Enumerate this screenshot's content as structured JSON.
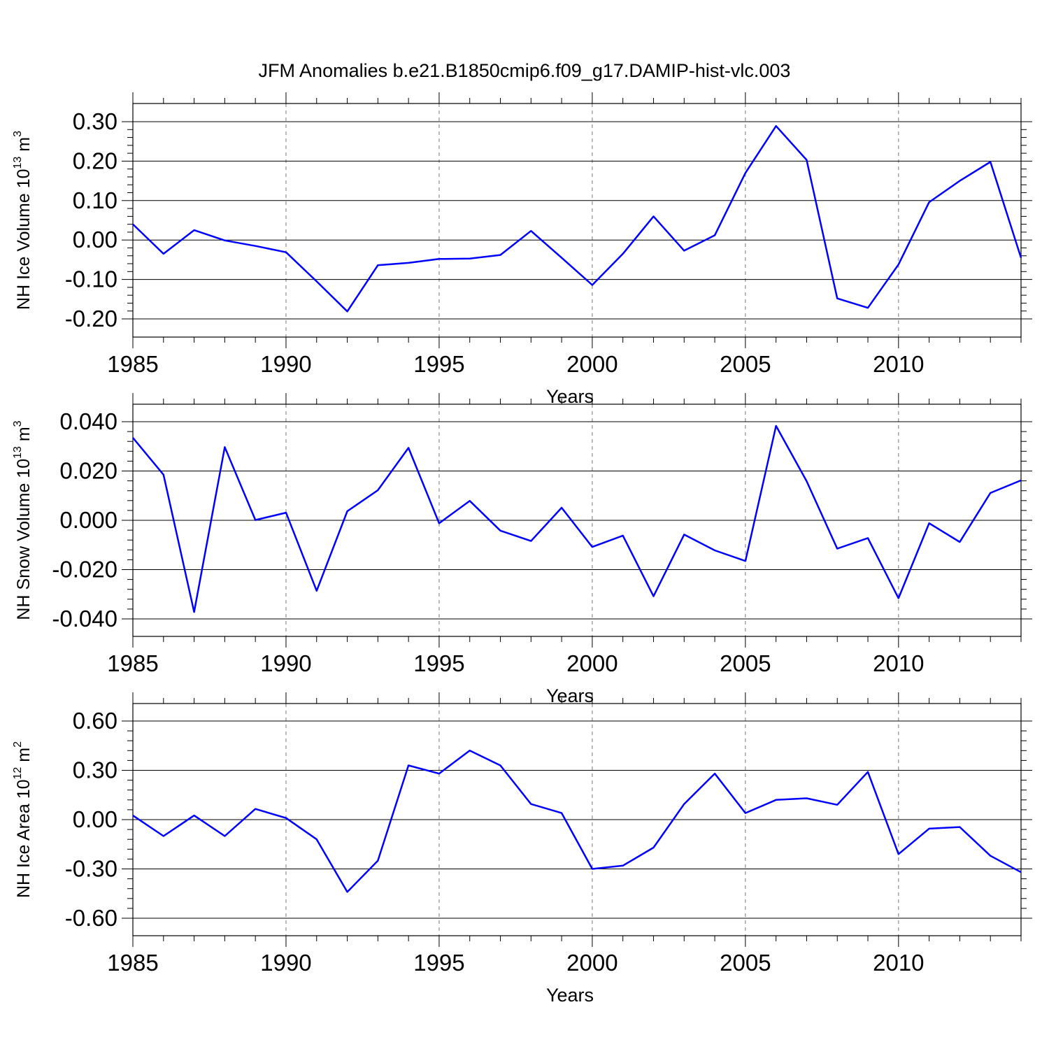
{
  "title": "JFM Anomalies b.e21.B1850cmip6.f09_g17.DAMIP-hist-vlc.003",
  "chart_data": [
    {
      "type": "line",
      "xlabel": "Years",
      "ylabel_main": "NH Ice Volume 10",
      "ylabel_exp": "13",
      "ylabel_unit": " m",
      "ylabel_unit_exp": "3",
      "xlim": [
        1985,
        2014
      ],
      "ylim": [
        -0.2,
        0.3
      ],
      "x_ticks": [
        1985,
        1990,
        1995,
        2000,
        2005,
        2010
      ],
      "y_ticks": [
        0.3,
        0.2,
        0.1,
        0.0,
        -0.1,
        -0.2
      ],
      "y_tick_labels": [
        "0.30",
        "0.20",
        "0.10",
        "0.00",
        "-0.10",
        "-0.20"
      ],
      "x_grid": "dashed-at-major-ticks",
      "line_color": "#0000ff",
      "x": [
        1985,
        1986,
        1987,
        1988,
        1989,
        1990,
        1991,
        1992,
        1993,
        1994,
        1995,
        1996,
        1997,
        1998,
        1999,
        2000,
        2001,
        2002,
        2003,
        2004,
        2005,
        2006,
        2007,
        2008,
        2009,
        2010,
        2011,
        2012,
        2013,
        2014
      ],
      "values": [
        0.04,
        -0.035,
        0.025,
        -0.001,
        -0.015,
        -0.031,
        -0.105,
        -0.181,
        -0.064,
        -0.058,
        -0.048,
        -0.047,
        -0.038,
        0.023,
        -0.045,
        -0.114,
        -0.035,
        0.06,
        -0.027,
        0.012,
        0.17,
        0.289,
        0.203,
        -0.148,
        -0.172,
        -0.062,
        0.096,
        0.15,
        0.198,
        -0.045
      ]
    },
    {
      "type": "line",
      "xlabel": "Years",
      "ylabel_main": "NH Snow Volume 10",
      "ylabel_exp": "13",
      "ylabel_unit": " m",
      "ylabel_unit_exp": "3",
      "xlim": [
        1985,
        2014
      ],
      "ylim": [
        -0.04,
        0.04
      ],
      "x_ticks": [
        1985,
        1990,
        1995,
        2000,
        2005,
        2010
      ],
      "y_ticks": [
        0.04,
        0.02,
        0.0,
        -0.02,
        -0.04
      ],
      "y_tick_labels": [
        "0.040",
        "0.020",
        "0.000",
        "-0.020",
        "-0.040"
      ],
      "x_grid": "dashed-at-major-ticks",
      "line_color": "#0000ff",
      "x": [
        1985,
        1986,
        1987,
        1988,
        1989,
        1990,
        1991,
        1992,
        1993,
        1994,
        1995,
        1996,
        1997,
        1998,
        1999,
        2000,
        2001,
        2002,
        2003,
        2004,
        2005,
        2006,
        2007,
        2008,
        2009,
        2010,
        2011,
        2012,
        2013,
        2014
      ],
      "values": [
        0.0335,
        0.0185,
        -0.0372,
        0.0297,
        0.0001,
        0.0031,
        -0.0286,
        0.0037,
        0.0122,
        0.0294,
        -0.0012,
        0.0079,
        -0.0042,
        -0.0084,
        0.0051,
        -0.0108,
        -0.0062,
        -0.0308,
        -0.0058,
        -0.0122,
        -0.0165,
        0.0383,
        0.0159,
        -0.0115,
        -0.0072,
        -0.0316,
        -0.0012,
        -0.0088,
        0.0111,
        0.0162
      ]
    },
    {
      "type": "line",
      "xlabel": "Years",
      "ylabel_main": "NH Ice Area 10",
      "ylabel_exp": "12",
      "ylabel_unit": " m",
      "ylabel_unit_exp": "2",
      "xlim": [
        1985,
        2014
      ],
      "ylim": [
        -0.6,
        0.6
      ],
      "x_ticks": [
        1985,
        1990,
        1995,
        2000,
        2005,
        2010
      ],
      "y_ticks": [
        0.6,
        0.3,
        0.0,
        -0.3,
        -0.6
      ],
      "y_tick_labels": [
        "0.60",
        "0.30",
        "0.00",
        "-0.30",
        "-0.60"
      ],
      "x_grid": "dashed-at-major-ticks",
      "line_color": "#0000ff",
      "x": [
        1985,
        1986,
        1987,
        1988,
        1989,
        1990,
        1991,
        1992,
        1993,
        1994,
        1995,
        1996,
        1997,
        1998,
        1999,
        2000,
        2001,
        2002,
        2003,
        2004,
        2005,
        2006,
        2007,
        2008,
        2009,
        2010,
        2011,
        2012,
        2013,
        2014
      ],
      "values": [
        0.025,
        -0.1,
        0.025,
        -0.1,
        0.065,
        0.01,
        -0.12,
        -0.44,
        -0.25,
        0.33,
        0.28,
        0.42,
        0.33,
        0.095,
        0.04,
        -0.3,
        -0.28,
        -0.17,
        0.095,
        0.28,
        0.04,
        0.12,
        0.13,
        0.09,
        0.29,
        -0.21,
        -0.055,
        -0.045,
        -0.22,
        -0.32
      ]
    }
  ]
}
